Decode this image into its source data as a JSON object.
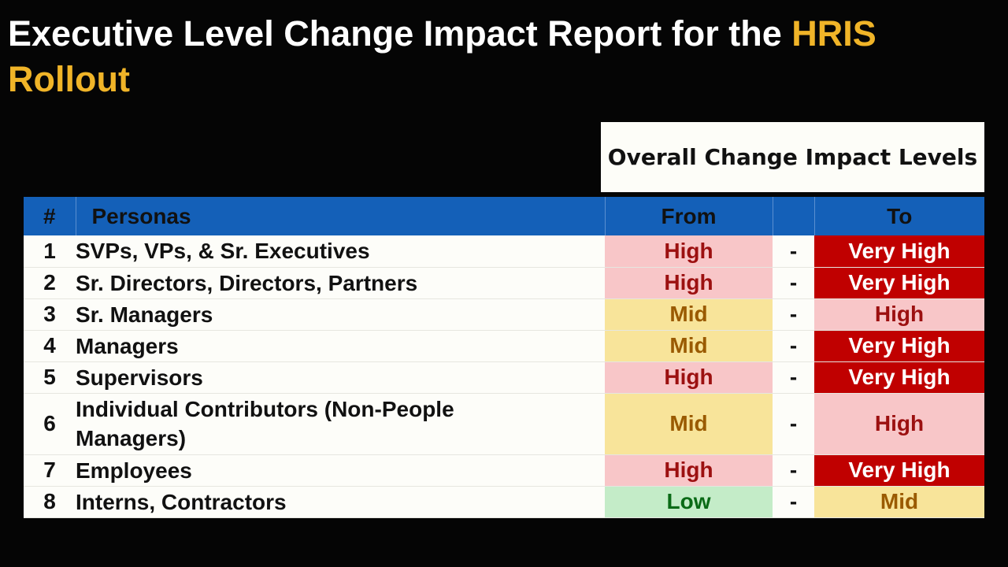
{
  "title": {
    "main": "Executive Level Change Impact Report for the ",
    "accent": "HRIS Rollout"
  },
  "impact_header": "Overall Change Impact Levels",
  "columns": {
    "num": "#",
    "persona": "Personas",
    "from": "From",
    "to": "To"
  },
  "separator": "-",
  "colors": {
    "header_blue": "#1460b8",
    "accent_gold": "#f0b428",
    "very_high_bg": "#c00000",
    "high_bg": "#f8c6c8",
    "mid_bg": "#f8e49a",
    "low_bg": "#c4ecc8"
  },
  "rows": [
    {
      "num": "1",
      "persona": "SVPs, VPs, & Sr. Executives",
      "from": "High",
      "to": "Very High"
    },
    {
      "num": "2",
      "persona": "Sr. Directors, Directors, Partners",
      "from": "High",
      "to": "Very High"
    },
    {
      "num": "3",
      "persona": "Sr. Managers",
      "from": "Mid",
      "to": "High"
    },
    {
      "num": "4",
      "persona": "Managers",
      "from": "Mid",
      "to": "Very High"
    },
    {
      "num": "5",
      "persona": "Supervisors",
      "from": "High",
      "to": "Very High"
    },
    {
      "num": "6",
      "persona": "Individual Contributors (Non-People Managers)",
      "from": "Mid",
      "to": "High"
    },
    {
      "num": "7",
      "persona": "Employees",
      "from": "High",
      "to": "Very High"
    },
    {
      "num": "8",
      "persona": "Interns, Contractors",
      "from": "Low",
      "to": "Mid"
    }
  ]
}
